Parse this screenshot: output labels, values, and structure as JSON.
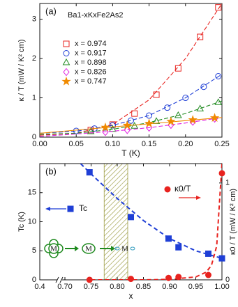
{
  "chart_data": [
    {
      "type": "scatter",
      "panel_label": "(a)",
      "annotation": "Ba1-xKxFe2As2",
      "xlabel": "T (K)",
      "ylabel": "κ / T (mW / K² cm)",
      "xlim": [
        0,
        0.25
      ],
      "ylim": [
        0,
        3.4
      ],
      "xticks": [
        {
          "value": 0,
          "label": "0.00"
        },
        0.05,
        {
          "value": 0.1,
          "label": "0.10"
        },
        0.15,
        {
          "value": 0.2,
          "label": "0.20"
        },
        0.25
      ],
      "yticks": [
        0,
        1,
        2,
        3
      ],
      "series": [
        {
          "name": "x = 0.974",
          "color": "#e8231f",
          "marker": "square",
          "filled": false,
          "x": [
            0.07,
            0.1,
            0.13,
            0.16,
            0.19,
            0.22,
            0.245
          ],
          "values": [
            0.18,
            0.32,
            0.6,
            1.08,
            1.75,
            2.55,
            3.3
          ],
          "fit_x": [
            0,
            0.05,
            0.1,
            0.15,
            0.2,
            0.25
          ],
          "fit": [
            0.05,
            0.1,
            0.32,
            0.95,
            2.0,
            3.4
          ]
        },
        {
          "name": "x = 0.917",
          "color": "#1f3fd6",
          "marker": "circle",
          "filled": false,
          "x": [
            0.05,
            0.075,
            0.1,
            0.125,
            0.15,
            0.175,
            0.2,
            0.225,
            0.245
          ],
          "values": [
            0.16,
            0.22,
            0.3,
            0.42,
            0.55,
            0.75,
            1.0,
            1.28,
            1.55
          ],
          "fit_x": [
            0,
            0.05,
            0.1,
            0.15,
            0.2,
            0.25
          ],
          "fit": [
            0.1,
            0.15,
            0.3,
            0.55,
            1.0,
            1.6
          ]
        },
        {
          "name": "x = 0.898",
          "color": "#1f8a1f",
          "marker": "triangle",
          "filled": false,
          "x": [
            0.07,
            0.1,
            0.13,
            0.16,
            0.19,
            0.22,
            0.245
          ],
          "values": [
            0.14,
            0.2,
            0.28,
            0.4,
            0.55,
            0.72,
            0.88
          ],
          "fit_x": [
            0,
            0.05,
            0.1,
            0.15,
            0.2,
            0.25
          ],
          "fit": [
            0.07,
            0.1,
            0.2,
            0.37,
            0.6,
            0.92
          ]
        },
        {
          "name": "x = 0.826",
          "color": "#e020e0",
          "marker": "diamond",
          "filled": false,
          "x": [
            0.09,
            0.12,
            0.15,
            0.18,
            0.21,
            0.24
          ],
          "values": [
            0.13,
            0.18,
            0.24,
            0.31,
            0.39,
            0.47
          ],
          "fit_x": [
            0,
            0.05,
            0.1,
            0.15,
            0.2,
            0.25
          ],
          "fit": [
            0.02,
            0.08,
            0.15,
            0.24,
            0.36,
            0.5
          ]
        },
        {
          "name": "x = 0.747",
          "color": "#f08a00",
          "marker": "star",
          "filled": true,
          "x": [
            0.09,
            0.12,
            0.15,
            0.18,
            0.21,
            0.24
          ],
          "values": [
            0.25,
            0.3,
            0.35,
            0.4,
            0.44,
            0.49
          ],
          "fit_x": [
            0,
            0.25
          ],
          "fit": [
            0.1,
            0.5
          ]
        }
      ]
    },
    {
      "type": "scatter",
      "panel_label": "(b)",
      "xlabel": "x",
      "ylabel": "Tc (K)",
      "y2label": "κ0 / T (mW / K² cm)",
      "xlim": [
        0.4,
        1.0
      ],
      "axis_break": 0.7,
      "ylim": [
        0,
        20
      ],
      "y2lim": [
        0,
        1.2
      ],
      "xticks": [
        0.4,
        {
          "value": 0.7,
          "label": "0.70"
        },
        0.75,
        {
          "value": 0.8,
          "label": "0.80"
        },
        0.85,
        {
          "value": 0.9,
          "label": "0.90"
        },
        0.95,
        {
          "value": 1.0,
          "label": "1.00"
        }
      ],
      "yticks": [
        0,
        5,
        10,
        15
      ],
      "y2ticks": [
        0,
        1
      ],
      "shaded_region": [
        0.775,
        0.82
      ],
      "annotations": [
        "M",
        "M",
        "M"
      ],
      "series": [
        {
          "name": "Tc",
          "color": "#1f3fd6",
          "marker": "square",
          "filled": true,
          "x": [
            0.747,
            0.826,
            0.898,
            0.917,
            0.974,
            1.0
          ],
          "values": [
            18.5,
            10.8,
            7.1,
            5.6,
            4.5,
            3.7
          ],
          "fit_x": [
            0.73,
            0.75,
            0.8,
            0.85,
            0.9,
            0.95,
            1.0
          ],
          "fit": [
            20,
            18.2,
            14,
            10.2,
            7.1,
            5.0,
            3.7
          ]
        },
        {
          "name": "κ0/T",
          "color": "#e8231f",
          "marker": "circle",
          "filled": true,
          "axis": "y2",
          "x": [
            0.747,
            0.826,
            0.898,
            0.917,
            0.974,
            1.0
          ],
          "values": [
            0.0,
            0.01,
            0.02,
            0.03,
            0.05,
            1.1
          ],
          "fit_x": [
            0.75,
            0.85,
            0.9,
            0.95,
            0.97,
            0.98,
            0.99,
            1.0
          ],
          "fit": [
            0,
            0,
            0.005,
            0.03,
            0.08,
            0.15,
            0.35,
            1.2
          ]
        }
      ]
    }
  ]
}
